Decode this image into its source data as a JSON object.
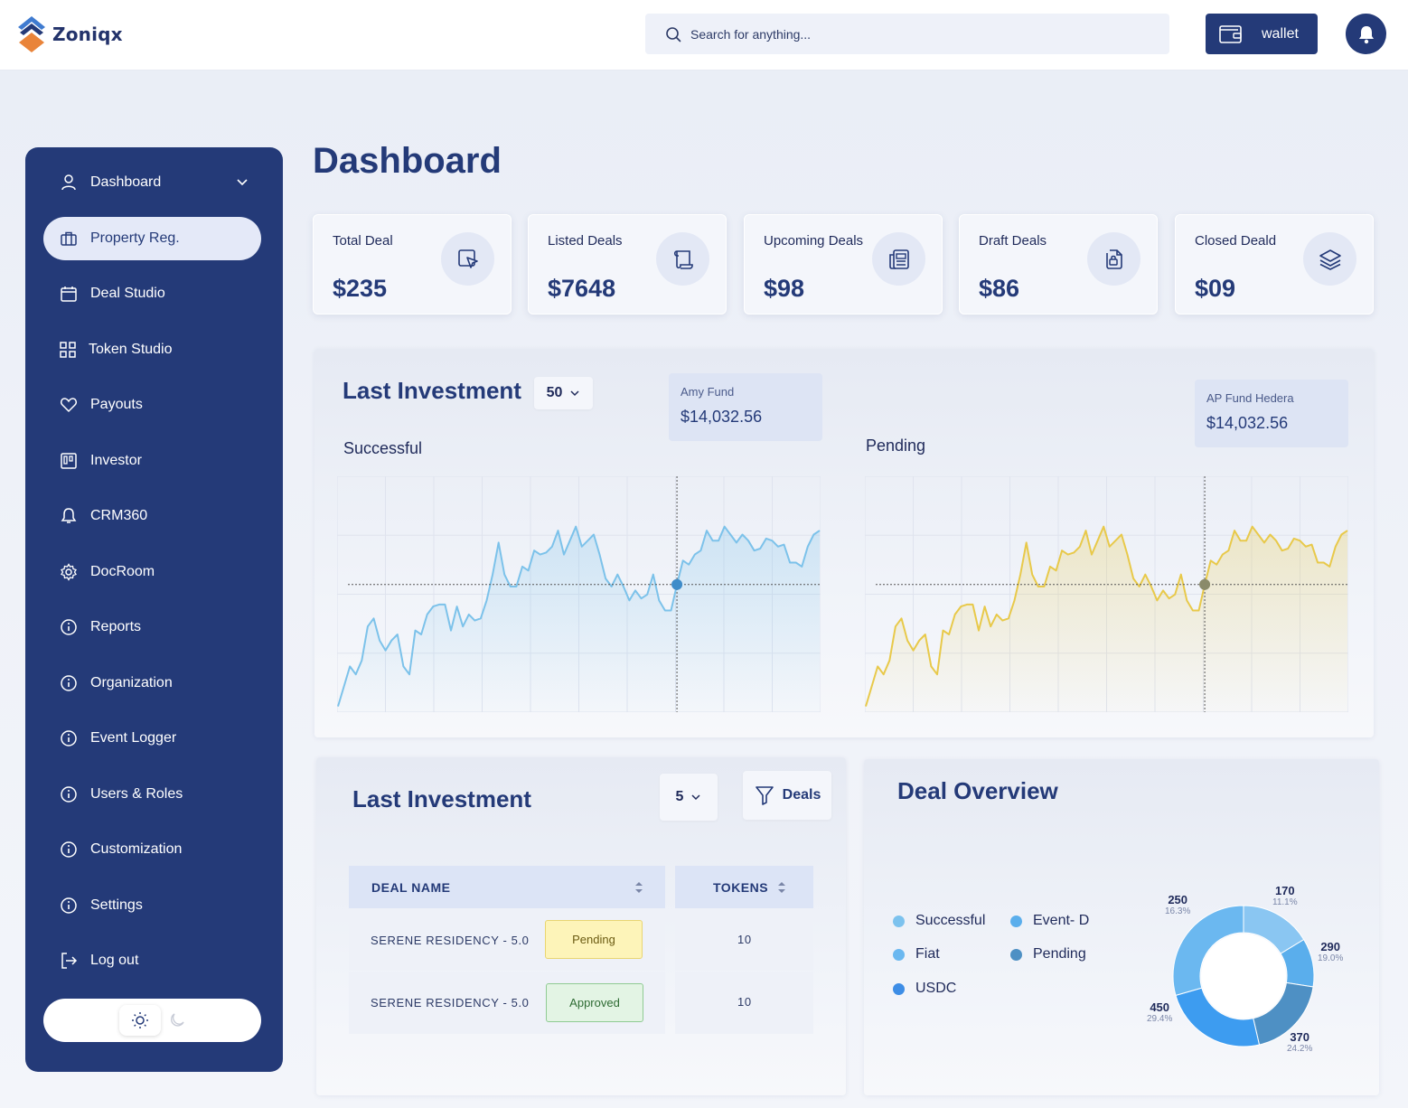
{
  "app": {
    "name": "Zoniqx"
  },
  "search": {
    "placeholder": "Search for anything..."
  },
  "header": {
    "wallet_label": "wallet"
  },
  "sidebar": {
    "items": [
      {
        "label": "Dashboard",
        "icon": "user-icon"
      },
      {
        "label": "Property Reg.",
        "icon": "briefcase-icon"
      },
      {
        "label": "Deal Studio",
        "icon": "calendar-icon"
      },
      {
        "label": "Token Studio",
        "icon": "grid-icon"
      },
      {
        "label": "Payouts",
        "icon": "heart-icon"
      },
      {
        "label": "Investor",
        "icon": "kanban-icon"
      },
      {
        "label": "CRM360",
        "icon": "bell-icon"
      },
      {
        "label": "DocRoom",
        "icon": "gear-icon"
      },
      {
        "label": "Reports",
        "icon": "info-icon"
      },
      {
        "label": "Organization",
        "icon": "info-icon"
      },
      {
        "label": "Event Logger",
        "icon": "info-icon"
      },
      {
        "label": "Users & Roles",
        "icon": "info-icon"
      },
      {
        "label": "Customization",
        "icon": "info-icon"
      },
      {
        "label": "Settings",
        "icon": "info-icon"
      },
      {
        "label": "Log out",
        "icon": "logout-icon"
      }
    ]
  },
  "page": {
    "title": "Dashboard"
  },
  "stats": [
    {
      "label": "Total Deal",
      "value": "$235",
      "icon": "cursor-icon"
    },
    {
      "label": "Listed Deals",
      "value": "$7648",
      "icon": "scroll-icon"
    },
    {
      "label": "Upcoming Deals",
      "value": "$98",
      "icon": "newspaper-icon"
    },
    {
      "label": "Draft Deals",
      "value": "$86",
      "icon": "file-lock-icon"
    },
    {
      "label": "Closed Deald",
      "value": "$09",
      "icon": "layers-icon"
    }
  ],
  "investment_chart": {
    "title": "Last Investment",
    "range_value": "50",
    "successful_label": "Successful",
    "pending_label": "Pending",
    "fund_left": {
      "name": "Amy Fund",
      "amount": "$14,032.56"
    },
    "fund_right": {
      "name": "AP Fund Hedera",
      "amount": "$14,032.56"
    },
    "colors": {
      "successful": "#7cc2ea",
      "pending": "#e8c94a",
      "marker_successful": "#3f8cc9",
      "marker_pending": "#8a8a6a"
    }
  },
  "chart_data": [
    {
      "type": "line",
      "title": "Successful",
      "ylim": [
        0,
        100
      ],
      "series": [
        {
          "values": [
            2,
            12,
            22,
            18,
            25,
            42,
            46,
            35,
            30,
            35,
            38,
            22,
            18,
            40,
            38,
            48,
            52,
            53,
            53,
            40,
            52,
            42,
            48,
            45,
            46,
            55,
            68,
            84,
            68,
            62,
            62,
            72,
            70,
            80,
            78,
            79,
            82,
            90,
            78,
            85,
            92,
            82,
            85,
            88,
            78,
            66,
            62,
            68,
            62,
            55,
            60,
            56,
            58,
            68,
            55,
            50,
            50,
            63,
            75,
            73,
            78,
            80,
            90,
            85,
            85,
            92,
            88,
            84,
            88,
            85,
            80,
            81,
            86,
            85,
            82,
            83,
            74,
            74,
            72,
            82,
            88,
            90
          ]
        }
      ]
    },
    {
      "type": "line",
      "title": "Pending",
      "ylim": [
        0,
        100
      ],
      "series": [
        {
          "values": [
            2,
            12,
            22,
            18,
            25,
            42,
            46,
            35,
            30,
            35,
            38,
            22,
            18,
            40,
            38,
            48,
            52,
            53,
            53,
            40,
            52,
            42,
            48,
            45,
            46,
            55,
            68,
            84,
            68,
            62,
            62,
            72,
            70,
            80,
            78,
            79,
            82,
            90,
            78,
            85,
            92,
            82,
            85,
            88,
            78,
            66,
            62,
            68,
            62,
            55,
            60,
            56,
            58,
            68,
            55,
            50,
            50,
            63,
            75,
            73,
            78,
            80,
            90,
            85,
            85,
            92,
            88,
            84,
            88,
            85,
            80,
            81,
            86,
            85,
            82,
            83,
            74,
            74,
            72,
            82,
            88,
            90
          ]
        }
      ]
    },
    {
      "type": "pie",
      "title": "Deal Overview",
      "categories": [
        "250",
        "170",
        "290",
        "370",
        "450"
      ],
      "series": [
        {
          "values": [
            250,
            170,
            290,
            370,
            450
          ],
          "percent": [
            "16.3%",
            "11.1%",
            "19.0%",
            "24.2%",
            "29.4%"
          ]
        }
      ],
      "colors": [
        "#8ac6f2",
        "#5aaeec",
        "#4e90c4",
        "#3d9cf0",
        "#6bb8f0"
      ]
    }
  ],
  "table_panel": {
    "title": "Last Investment",
    "page_size": "5",
    "deals_button": "Deals",
    "columns": [
      "DEAL NAME",
      "TOKENS"
    ],
    "rows": [
      {
        "name": "SERENE RESIDENCY - 5.0",
        "status": "Pending",
        "tokens": "10"
      },
      {
        "name": "SERENE RESIDENCY - 5.0",
        "status": "Approved",
        "tokens": "10"
      }
    ]
  },
  "deal_overview": {
    "title": "Deal Overview",
    "legend": [
      {
        "label": "Successful",
        "color": "#7cc2ee"
      },
      {
        "label": "Event- D",
        "color": "#5aaeec"
      },
      {
        "label": "Fiat",
        "color": "#6bb8f0"
      },
      {
        "label": "Pending",
        "color": "#4e90c4"
      },
      {
        "label": "USDC",
        "color": "#3d8de6"
      }
    ],
    "slices": [
      {
        "value": "250",
        "percent": "16.3%"
      },
      {
        "value": "170",
        "percent": "11.1%"
      },
      {
        "value": "290",
        "percent": "19.0%"
      },
      {
        "value": "370",
        "percent": "24.2%"
      },
      {
        "value": "450",
        "percent": "29.4%"
      }
    ]
  }
}
